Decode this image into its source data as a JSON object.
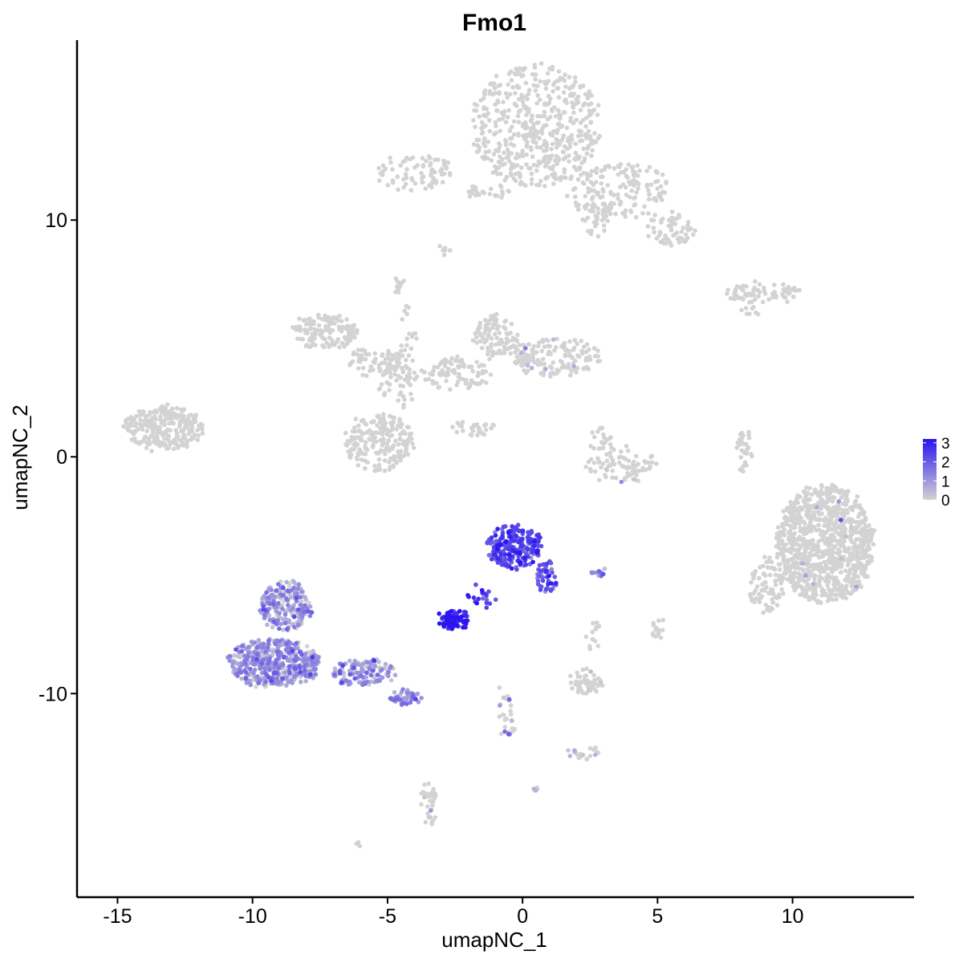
{
  "chart_data": {
    "type": "scatter",
    "title": "Fmo1",
    "xlabel": "umapNC_1",
    "ylabel": "umapNC_2",
    "xlim": [
      -16.5,
      14.5
    ],
    "ylim": [
      -18.6,
      17.6
    ],
    "x_ticks": [
      -15,
      -10,
      -5,
      0,
      5,
      10
    ],
    "x_tick_labels": [
      "-15",
      "-10",
      "-5",
      "0",
      "5",
      "10"
    ],
    "y_ticks": [
      -10,
      0,
      10
    ],
    "y_tick_labels": [
      "-10",
      "0",
      "10"
    ],
    "grid": false,
    "legend_position": "right",
    "color_scale": {
      "low_color": "#d3d3d3",
      "high_color": "#2a14f0",
      "breaks": [
        0,
        1,
        2,
        3
      ],
      "break_labels": [
        "0",
        "1",
        "2",
        "3"
      ],
      "max": 3.2
    },
    "clusters": [
      {
        "cx": 0.5,
        "cy": 14.0,
        "rx": 2.4,
        "ry": 2.6,
        "n": 520,
        "expr_mean": 0.0
      },
      {
        "cx": 3.6,
        "cy": 11.2,
        "rx": 2.0,
        "ry": 1.2,
        "n": 160,
        "expr_mean": 0.0
      },
      {
        "cx": 5.5,
        "cy": 9.6,
        "rx": 0.9,
        "ry": 0.7,
        "n": 60,
        "expr_mean": 0.0
      },
      {
        "cx": 2.7,
        "cy": 10.2,
        "rx": 0.5,
        "ry": 1.1,
        "n": 40,
        "expr_mean": 0.0
      },
      {
        "cx": -4.0,
        "cy": 12.0,
        "rx": 1.4,
        "ry": 0.8,
        "n": 75,
        "expr_mean": 0.0
      },
      {
        "cx": -1.3,
        "cy": 11.2,
        "rx": 0.9,
        "ry": 0.3,
        "n": 25,
        "expr_mean": 0.0
      },
      {
        "cx": -3.0,
        "cy": 8.7,
        "rx": 0.2,
        "ry": 0.2,
        "n": 8,
        "expr_mean": 0.0
      },
      {
        "cx": -4.6,
        "cy": 7.3,
        "rx": 0.2,
        "ry": 0.4,
        "n": 12,
        "expr_mean": 0.0
      },
      {
        "cx": 8.9,
        "cy": 6.9,
        "rx": 1.4,
        "ry": 0.4,
        "n": 70,
        "expr_mean": 0.0
      },
      {
        "cx": 8.4,
        "cy": 6.2,
        "rx": 0.4,
        "ry": 0.25,
        "n": 8,
        "expr_mean": 0.0
      },
      {
        "cx": -13.3,
        "cy": 1.2,
        "rx": 1.5,
        "ry": 0.9,
        "n": 260,
        "expr_mean": 0.0
      },
      {
        "cx": -7.3,
        "cy": 5.3,
        "rx": 1.2,
        "ry": 0.7,
        "n": 140,
        "expr_mean": 0.0
      },
      {
        "cx": -5.5,
        "cy": 4.0,
        "rx": 1.0,
        "ry": 0.6,
        "n": 60,
        "expr_mean": 0.0
      },
      {
        "cx": -4.6,
        "cy": 3.2,
        "rx": 0.8,
        "ry": 1.2,
        "n": 60,
        "expr_mean": 0.0
      },
      {
        "cx": -5.3,
        "cy": 0.6,
        "rx": 1.3,
        "ry": 1.2,
        "n": 210,
        "expr_mean": 0.0
      },
      {
        "cx": -4.2,
        "cy": 5.2,
        "rx": 0.3,
        "ry": 1.3,
        "n": 18,
        "expr_mean": 0.0
      },
      {
        "cx": -2.5,
        "cy": 3.5,
        "rx": 1.3,
        "ry": 0.7,
        "n": 90,
        "expr_mean": 0.0
      },
      {
        "cx": -1.0,
        "cy": 5.1,
        "rx": 0.8,
        "ry": 0.9,
        "n": 90,
        "expr_mean": 0.0
      },
      {
        "cx": 1.2,
        "cy": 4.2,
        "rx": 1.7,
        "ry": 0.8,
        "n": 160,
        "expr_mean": 0.05
      },
      {
        "cx": -1.8,
        "cy": 1.2,
        "rx": 0.8,
        "ry": 0.3,
        "n": 28,
        "expr_mean": 0.0
      },
      {
        "cx": 3.5,
        "cy": -0.3,
        "rx": 1.4,
        "ry": 0.8,
        "n": 85,
        "expr_mean": 0.03
      },
      {
        "cx": 2.9,
        "cy": 0.8,
        "rx": 0.4,
        "ry": 0.5,
        "n": 18,
        "expr_mean": 0.0
      },
      {
        "cx": 8.2,
        "cy": 0.2,
        "rx": 0.3,
        "ry": 0.9,
        "n": 30,
        "expr_mean": 0.0
      },
      {
        "cx": 11.2,
        "cy": -3.7,
        "rx": 1.8,
        "ry": 2.5,
        "n": 1000,
        "expr_mean": 0.01
      },
      {
        "cx": 9.0,
        "cy": -5.4,
        "rx": 0.6,
        "ry": 1.2,
        "n": 80,
        "expr_mean": 0.0
      },
      {
        "cx": -0.3,
        "cy": -3.8,
        "rx": 1.0,
        "ry": 0.9,
        "n": 230,
        "expr_mean": 2.3
      },
      {
        "cx": 0.9,
        "cy": -5.1,
        "rx": 0.35,
        "ry": 0.7,
        "n": 45,
        "expr_mean": 2.0
      },
      {
        "cx": -2.5,
        "cy": -6.9,
        "rx": 0.6,
        "ry": 0.35,
        "n": 80,
        "expr_mean": 2.9
      },
      {
        "cx": -1.5,
        "cy": -5.9,
        "rx": 0.5,
        "ry": 0.5,
        "n": 20,
        "expr_mean": 2.6
      },
      {
        "cx": 2.8,
        "cy": -4.9,
        "rx": 0.3,
        "ry": 0.15,
        "n": 10,
        "expr_mean": 1.4
      },
      {
        "cx": -8.8,
        "cy": -6.3,
        "rx": 0.9,
        "ry": 1.1,
        "n": 220,
        "expr_mean": 0.8
      },
      {
        "cx": -9.2,
        "cy": -8.7,
        "rx": 1.7,
        "ry": 1.0,
        "n": 460,
        "expr_mean": 0.9
      },
      {
        "cx": -5.9,
        "cy": -9.1,
        "rx": 1.2,
        "ry": 0.6,
        "n": 130,
        "expr_mean": 0.9
      },
      {
        "cx": -4.3,
        "cy": -10.2,
        "rx": 0.6,
        "ry": 0.3,
        "n": 45,
        "expr_mean": 1.0
      },
      {
        "cx": 2.3,
        "cy": -9.5,
        "rx": 0.6,
        "ry": 0.5,
        "n": 55,
        "expr_mean": 0.05
      },
      {
        "cx": 2.6,
        "cy": -7.6,
        "rx": 0.2,
        "ry": 0.7,
        "n": 12,
        "expr_mean": 0.0
      },
      {
        "cx": 5.0,
        "cy": -7.3,
        "rx": 0.25,
        "ry": 0.4,
        "n": 15,
        "expr_mean": 0.0
      },
      {
        "cx": -0.6,
        "cy": -10.8,
        "rx": 0.25,
        "ry": 1.2,
        "n": 30,
        "expr_mean": 0.3
      },
      {
        "cx": 2.2,
        "cy": -12.5,
        "rx": 0.6,
        "ry": 0.3,
        "n": 20,
        "expr_mean": 0.2
      },
      {
        "cx": -3.5,
        "cy": -14.7,
        "rx": 0.35,
        "ry": 1.0,
        "n": 35,
        "expr_mean": 0.05
      },
      {
        "cx": 0.5,
        "cy": -14.0,
        "rx": 0.1,
        "ry": 0.1,
        "n": 4,
        "expr_mean": 0.5
      },
      {
        "cx": -6.1,
        "cy": -16.3,
        "rx": 0.1,
        "ry": 0.1,
        "n": 3,
        "expr_mean": 0.0
      }
    ]
  }
}
